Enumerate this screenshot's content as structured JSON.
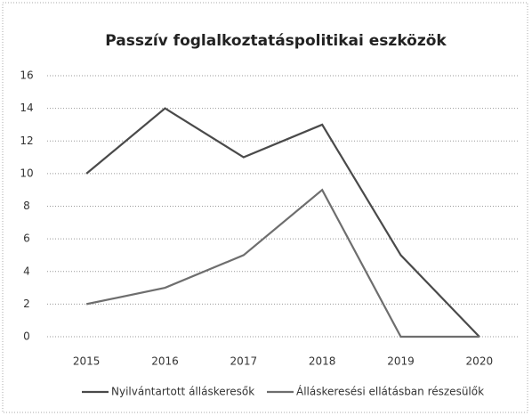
{
  "chart_data": {
    "type": "line",
    "title": "Passzív foglalkoztatáspolitikai eszközök",
    "categories": [
      "2015",
      "2016",
      "2017",
      "2018",
      "2019",
      "2020"
    ],
    "series": [
      {
        "name": "Nyilvántartott álláskeresők",
        "color": "#4a4a4a",
        "values": [
          10,
          14,
          11,
          13,
          5,
          0
        ]
      },
      {
        "name": "Álláskeresési ellátásban részesülők",
        "color": "#6e6e6e",
        "values": [
          2,
          3,
          5,
          9,
          0,
          0
        ]
      }
    ],
    "ylim": [
      0,
      16
    ],
    "yticks": [
      0,
      2,
      4,
      6,
      8,
      10,
      12,
      14,
      16
    ],
    "grid": true,
    "legend": "bottom"
  }
}
